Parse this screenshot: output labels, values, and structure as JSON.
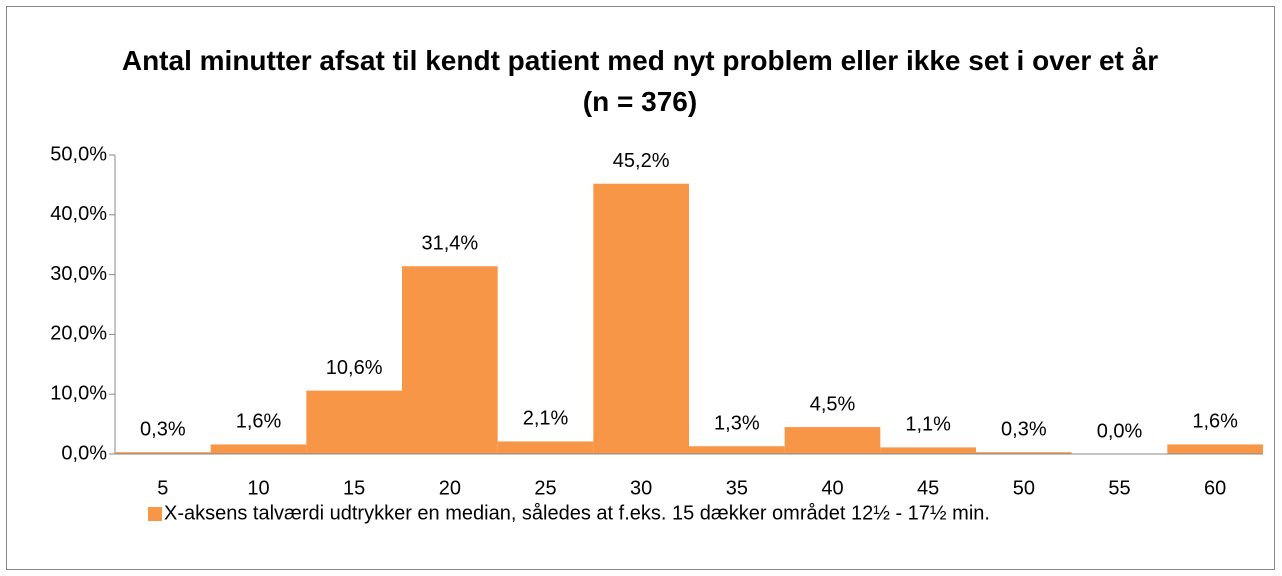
{
  "chart_data": {
    "type": "bar",
    "title": "Antal minutter afsat til kendt patient med nyt problem eller ikke set i over et år (n = 376)",
    "categories": [
      "5",
      "10",
      "15",
      "20",
      "25",
      "30",
      "35",
      "40",
      "45",
      "50",
      "55",
      "60"
    ],
    "series": [
      {
        "name": "X-aksens talværdi udtrykker en median, således at f.eks. 15 dækker området 12½ - 17½ min.",
        "color": "#f79646",
        "values": [
          0.3,
          1.6,
          10.6,
          31.4,
          2.1,
          45.2,
          1.3,
          4.5,
          1.1,
          0.3,
          0.0,
          1.6
        ],
        "value_labels": [
          "0,3%",
          "1,6%",
          "10,6%",
          "31,4%",
          "2,1%",
          "45,2%",
          "1,3%",
          "4,5%",
          "1,1%",
          "0,3%",
          "0,0%",
          "1,6%"
        ]
      }
    ],
    "ylim": [
      0,
      50
    ],
    "yticks": [
      {
        "value": 0,
        "label": "0,0%"
      },
      {
        "value": 10,
        "label": "10,0%"
      },
      {
        "value": 20,
        "label": "20,0%"
      },
      {
        "value": 30,
        "label": "30,0%"
      },
      {
        "value": 40,
        "label": "40,0%"
      },
      {
        "value": 50,
        "label": "50,0%"
      }
    ],
    "grid": false,
    "legend": "bottom"
  }
}
